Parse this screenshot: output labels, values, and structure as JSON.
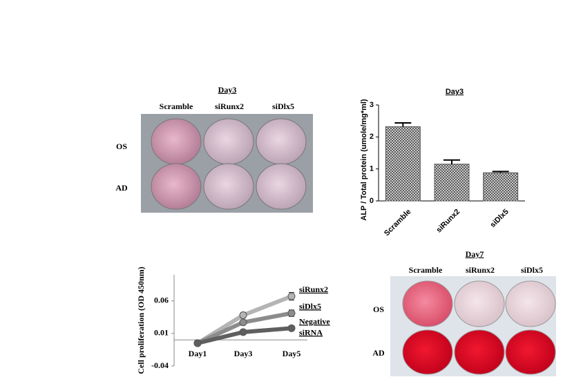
{
  "panels": [
    {
      "title": "Day3",
      "columns": [
        "Scramble",
        "siRunx2",
        "siDlx5"
      ],
      "rows": [
        "OS",
        "AD"
      ]
    },
    {
      "title": "Day7",
      "columns": [
        "Scramble",
        "siRunx2",
        "siDlx5"
      ],
      "rows": [
        "OS",
        "AD"
      ]
    }
  ],
  "chart_data": [
    {
      "type": "bar",
      "title": "Day3",
      "ylabel": "ALP / Total protein (umole/mg*ml)",
      "categories": [
        "Scramble",
        "siRunx2",
        "siDlx5"
      ],
      "values": [
        2.32,
        1.15,
        0.88
      ],
      "errors": [
        0.12,
        0.13,
        0.04
      ],
      "color": "#555555",
      "ylim": [
        0,
        3
      ],
      "yticks": [
        0,
        1,
        2,
        3
      ]
    },
    {
      "type": "line",
      "ylabel": "Cell proliferation (OD 450nm)",
      "categories": [
        "Day1",
        "Day3",
        "Day5"
      ],
      "series": [
        {
          "name": "siRunx2",
          "color": "#b4b4b4",
          "values": [
            -0.005,
            0.038,
            0.067
          ],
          "errors": [
            0.002,
            0.004,
            0.006
          ]
        },
        {
          "name": "siDlx5",
          "color": "#8c8c8c",
          "values": [
            -0.005,
            0.027,
            0.041
          ],
          "errors": [
            0.002,
            0.003,
            0.005
          ]
        },
        {
          "name": "Negative siRNA",
          "color": "#5f5f5f",
          "values": [
            -0.005,
            0.012,
            0.018
          ],
          "errors": [
            0.002,
            0.002,
            0.002
          ]
        }
      ],
      "ylim": [
        -0.04,
        0.1
      ],
      "yticks": [
        -0.04,
        0.01,
        0.06
      ]
    }
  ]
}
